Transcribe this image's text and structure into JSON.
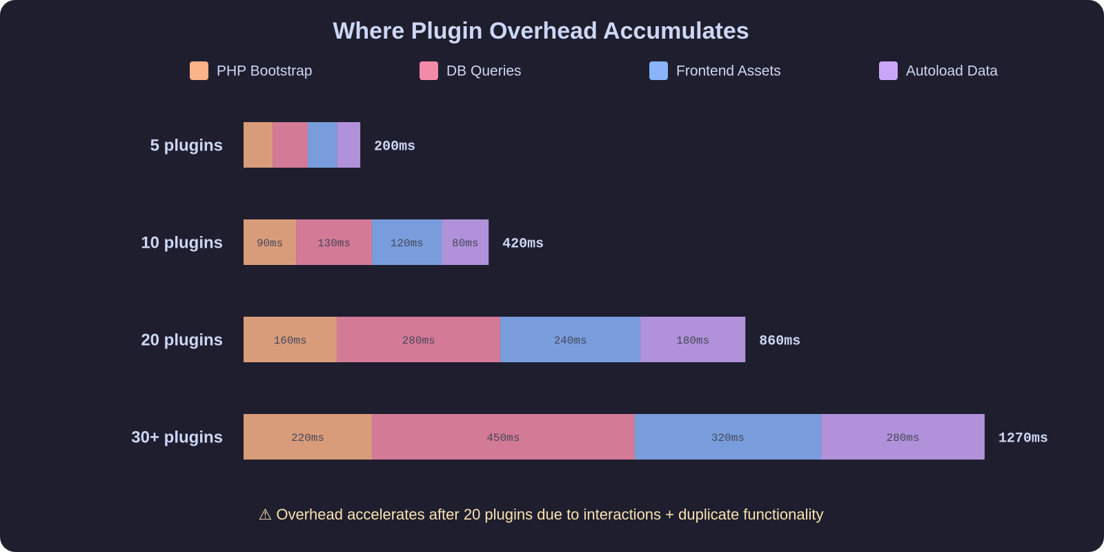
{
  "chart_data": {
    "type": "stacked_bar_horizontal",
    "title": "Where Plugin Overhead Accumulates",
    "categories": [
      "5 plugins",
      "10 plugins",
      "20 plugins",
      "30+ plugins"
    ],
    "series": [
      {
        "name": "PHP Bootstrap",
        "color": "#fab387",
        "values": [
          50,
          90,
          160,
          220
        ],
        "value_labels": [
          null,
          "90ms",
          "160ms",
          "220ms"
        ]
      },
      {
        "name": "DB Queries",
        "color": "#f38ba8",
        "values": [
          60,
          130,
          280,
          450
        ],
        "value_labels": [
          null,
          "130ms",
          "280ms",
          "450ms"
        ]
      },
      {
        "name": "Frontend Assets",
        "color": "#89b4fa",
        "values": [
          50,
          120,
          240,
          320
        ],
        "value_labels": [
          null,
          "120ms",
          "240ms",
          "320ms"
        ]
      },
      {
        "name": "Autoload Data",
        "color": "#cba6f7",
        "values": [
          40,
          80,
          180,
          280
        ],
        "value_labels": [
          null,
          "80ms",
          "180ms",
          "280ms"
        ]
      }
    ],
    "totals": [
      200,
      420,
      860,
      1270
    ],
    "total_labels": [
      "200ms",
      "420ms",
      "860ms",
      "1270ms"
    ],
    "footnote": "⚠ Overhead accelerates after 20 plugins due to interactions + duplicate functionality"
  }
}
